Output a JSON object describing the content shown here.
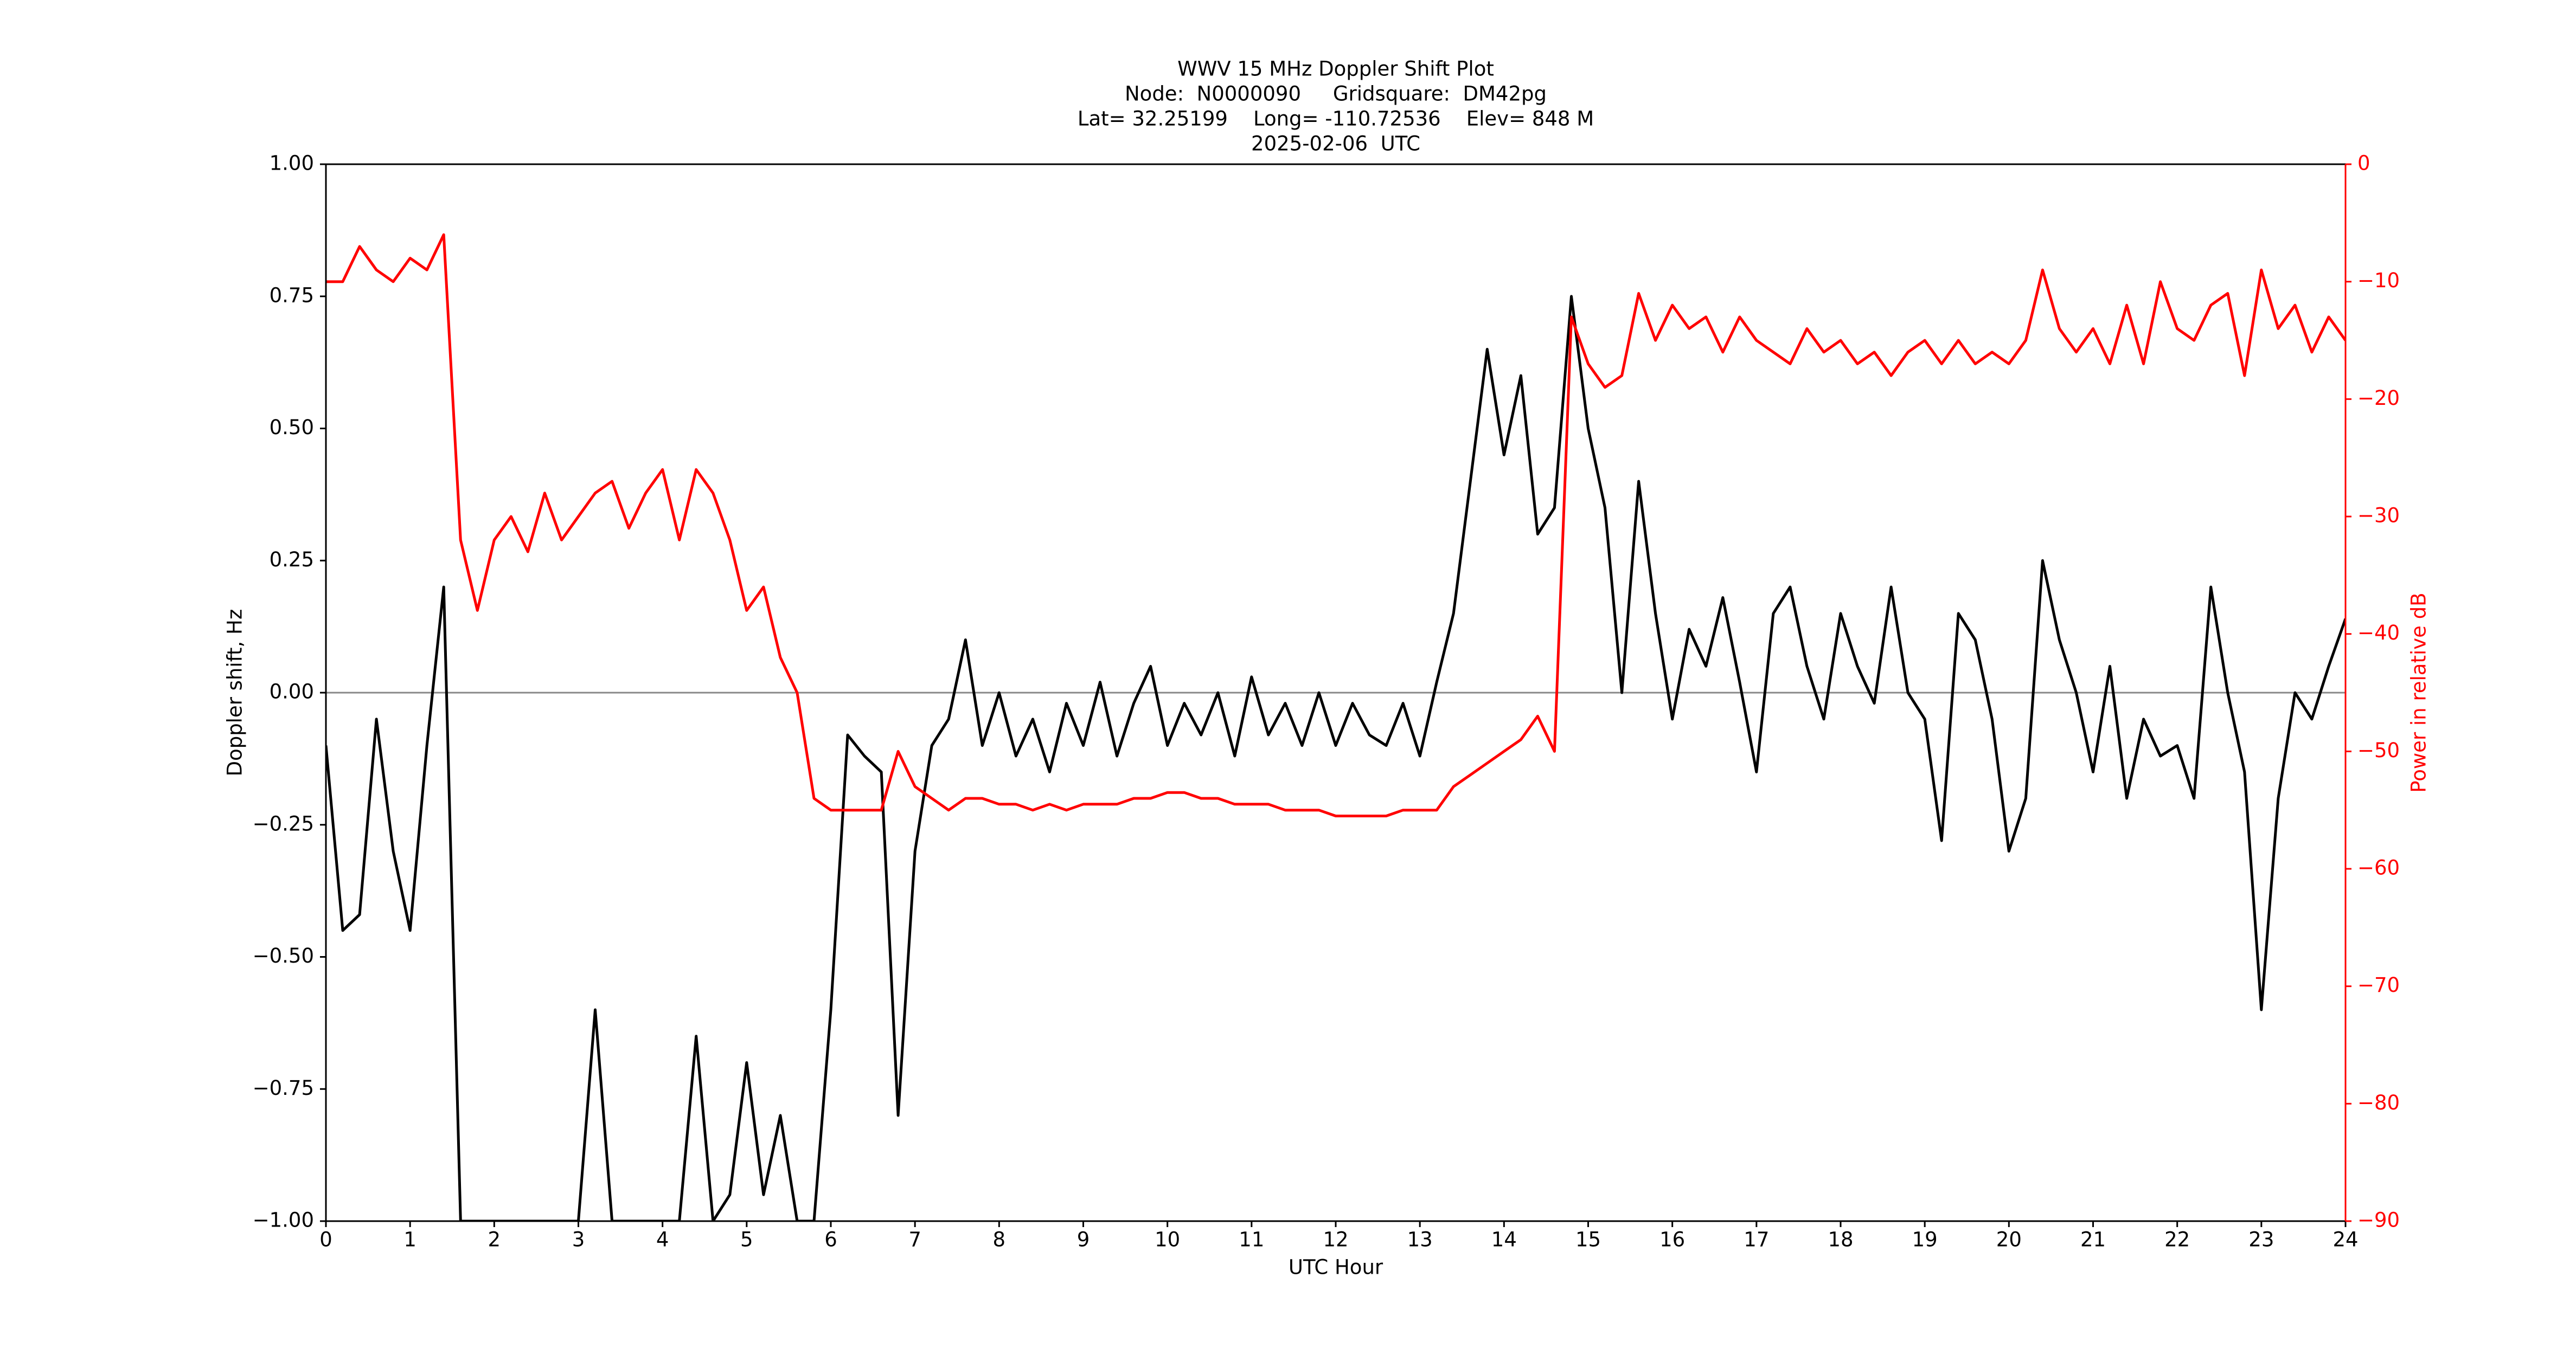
{
  "chart_data": {
    "type": "line",
    "title": [
      "WWV 15 MHz Doppler Shift Plot",
      "Node:  N0000090     Gridsquare:  DM42pg",
      "Lat= 32.25199    Long= -110.72536    Elev= 848 M",
      "2025-02-06  UTC"
    ],
    "xlabel": "UTC Hour",
    "ylabel": "Doppler shift, Hz",
    "y2label": "Power in relative dB",
    "y2color": "#ff0000",
    "xlim": [
      0,
      24
    ],
    "xticks": [
      0,
      1,
      2,
      3,
      4,
      5,
      6,
      7,
      8,
      9,
      10,
      11,
      12,
      13,
      14,
      15,
      16,
      17,
      18,
      19,
      20,
      21,
      22,
      23,
      24
    ],
    "ylim": [
      -1,
      1
    ],
    "yticks": [
      {
        "value": -1,
        "label": "−1.00"
      },
      {
        "value": -0.75,
        "label": "−0.75"
      },
      {
        "value": -0.5,
        "label": "−0.50"
      },
      {
        "value": -0.25,
        "label": "−0.25"
      },
      {
        "value": 0,
        "label": "0.00"
      },
      {
        "value": 0.25,
        "label": "0.25"
      },
      {
        "value": 0.5,
        "label": "0.50"
      },
      {
        "value": 0.75,
        "label": "0.75"
      },
      {
        "value": 1,
        "label": "1.00"
      }
    ],
    "y2lim": [
      -90,
      0
    ],
    "y2ticks": [
      {
        "value": -90,
        "label": "−90"
      },
      {
        "value": -80,
        "label": "−80"
      },
      {
        "value": -70,
        "label": "−70"
      },
      {
        "value": -60,
        "label": "−60"
      },
      {
        "value": -50,
        "label": "−50"
      },
      {
        "value": -40,
        "label": "−40"
      },
      {
        "value": -30,
        "label": "−30"
      },
      {
        "value": -20,
        "label": "−20"
      },
      {
        "value": -10,
        "label": "−10"
      },
      0
    ],
    "reference_line": 0,
    "x": [
      0,
      0.2,
      0.4,
      0.6,
      0.8,
      1,
      1.2,
      1.4,
      1.6,
      1.8,
      2,
      2.2,
      2.4,
      2.6,
      2.8,
      3,
      3.2,
      3.4,
      3.6,
      3.8,
      4,
      4.2,
      4.4,
      4.6,
      4.8,
      5,
      5.2,
      5.4,
      5.6,
      5.8,
      6,
      6.2,
      6.4,
      6.6,
      6.8,
      7,
      7.2,
      7.4,
      7.6,
      7.8,
      8,
      8.2,
      8.4,
      8.6,
      8.8,
      9,
      9.2,
      9.4,
      9.6,
      9.8,
      10,
      10.2,
      10.4,
      10.6,
      10.8,
      11,
      11.2,
      11.4,
      11.6,
      11.8,
      12,
      12.2,
      12.4,
      12.6,
      12.8,
      13,
      13.2,
      13.4,
      13.6,
      13.8,
      14,
      14.2,
      14.4,
      14.6,
      14.8,
      15,
      15.2,
      15.4,
      15.6,
      15.8,
      16,
      16.2,
      16.4,
      16.6,
      16.8,
      17,
      17.2,
      17.4,
      17.6,
      17.8,
      18,
      18.2,
      18.4,
      18.6,
      18.8,
      19,
      19.2,
      19.4,
      19.6,
      19.8,
      20,
      20.2,
      20.4,
      20.6,
      20.8,
      21,
      21.2,
      21.4,
      21.6,
      21.8,
      22,
      22.2,
      22.4,
      22.6,
      22.8,
      23,
      23.2,
      23.4,
      23.6,
      23.8,
      24
    ],
    "series": [
      {
        "color": "#000000",
        "values": [
          -0.1,
          -0.45,
          -0.42,
          -0.05,
          -0.3,
          -0.45,
          -0.1,
          0.2,
          -1,
          -1,
          -1,
          -1,
          -1,
          -1,
          -1,
          -1,
          -0.6,
          -1,
          -1,
          -1,
          -1,
          -1,
          -0.65,
          -1,
          -0.95,
          -0.7,
          -0.95,
          -0.8,
          -1,
          -1,
          -0.6,
          -0.08,
          -0.12,
          -0.15,
          -0.8,
          -0.3,
          -0.1,
          -0.05,
          0.1,
          -0.1,
          0,
          -0.12,
          -0.05,
          -0.15,
          -0.02,
          -0.1,
          0.02,
          -0.12,
          -0.02,
          0.05,
          -0.1,
          -0.02,
          -0.08,
          0,
          -0.12,
          0.03,
          -0.08,
          -0.02,
          -0.1,
          0,
          -0.1,
          -0.02,
          -0.08,
          -0.1,
          -0.02,
          -0.12,
          0.02,
          0.15,
          0.4,
          0.65,
          0.45,
          0.6,
          0.3,
          0.35,
          0.75,
          0.5,
          0.35,
          0,
          0.4,
          0.15,
          -0.05,
          0.12,
          0.05,
          0.18,
          0.02,
          -0.15,
          0.15,
          0.2,
          0.05,
          -0.05,
          0.15,
          0.05,
          -0.02,
          0.2,
          0,
          -0.05,
          -0.28,
          0.15,
          0.1,
          -0.05,
          -0.3,
          -0.2,
          0.25,
          0.1,
          0,
          -0.15,
          0.05,
          -0.2,
          -0.05,
          -0.12,
          -0.1,
          -0.2,
          0.2,
          0,
          -0.15,
          -0.6,
          -0.2,
          0,
          -0.05,
          0.05,
          0.14
        ]
      },
      {
        "color": "#ff0000",
        "axis": "y2",
        "values": [
          -10,
          -10,
          -7,
          -9,
          -10,
          -8,
          -9,
          -6,
          -32,
          -38,
          -32,
          -30,
          -33,
          -28,
          -32,
          -30,
          -28,
          -27,
          -31,
          -28,
          -26,
          -32,
          -26,
          -28,
          -32,
          -38,
          -36,
          -42,
          -45,
          -54,
          -55,
          -55,
          -55,
          -55,
          -50,
          -53,
          -54,
          -55,
          -54,
          -54,
          -54.5,
          -54.5,
          -55,
          -54.5,
          -55,
          -54.5,
          -54.5,
          -54.5,
          -54,
          -54,
          -53.5,
          -53.5,
          -54,
          -54,
          -54.5,
          -54.5,
          -54.5,
          -55,
          -55,
          -55,
          -55.5,
          -55.5,
          -55.5,
          -55.5,
          -55,
          -55,
          -55,
          -53,
          -52,
          -51,
          -50,
          -49,
          -47,
          -50,
          -13,
          -17,
          -19,
          -18,
          -11,
          -15,
          -12,
          -14,
          -13,
          -16,
          -13,
          -15,
          -16,
          -17,
          -14,
          -16,
          -15,
          -17,
          -16,
          -18,
          -16,
          -15,
          -17,
          -15,
          -17,
          -16,
          -17,
          -15,
          -9,
          -14,
          -16,
          -14,
          -17,
          -12,
          -17,
          -10,
          -14,
          -15,
          -12,
          -11,
          -18,
          -9,
          -14,
          -12,
          -16,
          -13,
          -15
        ]
      }
    ]
  }
}
